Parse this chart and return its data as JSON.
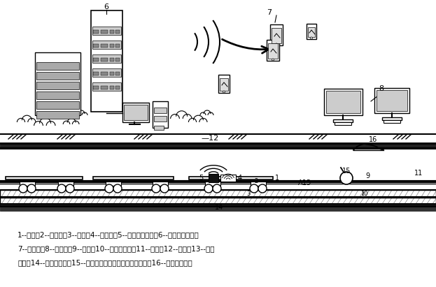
{
  "bg_color": "#ffffff",
  "line_color": "#000000",
  "fig_width": 6.23,
  "fig_height": 4.11,
  "dpi": 100,
  "caption_line1": "1--列车，2--转向架，3--轮对，4--传感器，5--信号传输系统，6--数据处理系统，",
  "caption_line2": "7--移动端，8--电脑端，9--轨道，10--浮置轨道板，11--隧道，12--土体，13--轨道",
  "caption_line3": "缺陷，14--轨道板缺陷，15--隧道损伤（裂缝、混凝土脱落），16--壁后土体脱空"
}
